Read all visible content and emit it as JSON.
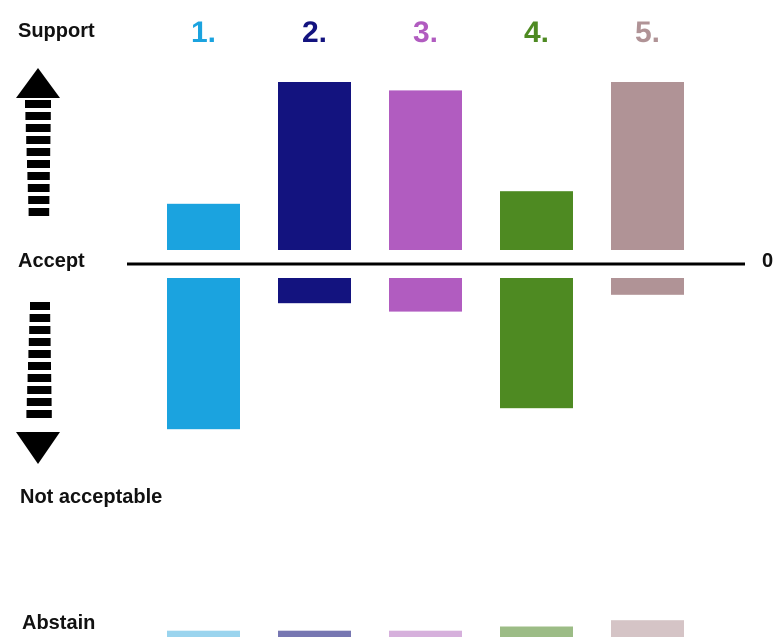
{
  "chart_data": {
    "type": "bar",
    "categories": [
      "1.",
      "2.",
      "3.",
      "4.",
      "5."
    ],
    "colors": [
      "#1ba3df",
      "#13137f",
      "#b15cc0",
      "#4e8a22",
      "#b09396"
    ],
    "abstain_colors": [
      "#9ad4ee",
      "#7777b2",
      "#d6b0dc",
      "#9cbc86",
      "#d5c4c6"
    ],
    "series": [
      {
        "values": [
          2.2,
          8.0,
          7.6,
          2.8,
          8.0
        ]
      },
      {
        "values": [
          -7.2,
          -1.2,
          -1.6,
          -6.2,
          -0.8
        ]
      }
    ],
    "abstain": [
      0.3,
      0.3,
      0.3,
      0.5,
      0.8
    ],
    "ylim": [
      -8,
      8.5
    ],
    "zero_label": "0",
    "labels": {
      "top": "Support",
      "zero": "Accept",
      "bottom": "Not acceptable",
      "abstain": "Abstain"
    }
  }
}
